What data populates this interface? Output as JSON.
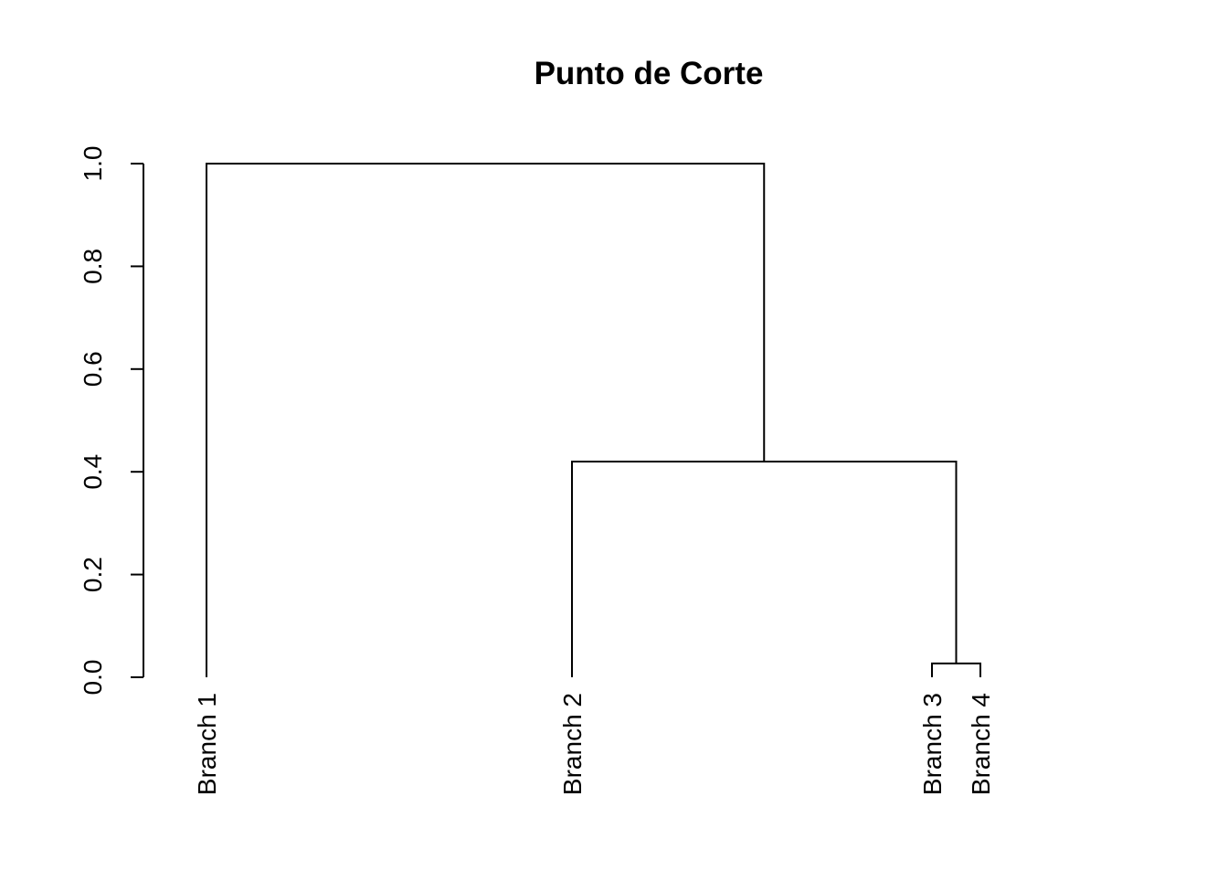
{
  "chart_data": {
    "type": "dendrogram",
    "title": "Punto de Corte",
    "xlabel": "",
    "ylabel": "",
    "ylim": [
      0,
      1
    ],
    "yticks": [
      0,
      0.2,
      0.4,
      0.6,
      0.8,
      1
    ],
    "ytick_labels": [
      "0.0",
      "0.2",
      "0.4",
      "0.6",
      "0.8",
      "1.0"
    ],
    "leaves": [
      "Branch 1",
      "Branch 2",
      "Branch 3",
      "Branch 4"
    ],
    "merges": [
      {
        "left": "Branch 3",
        "right": "Branch 4",
        "height": 0.027
      },
      {
        "left": "Branch 2",
        "right": "Branch 3+Branch 4",
        "height": 0.42
      },
      {
        "left": "Branch 1",
        "right": "Branch 2+Branch 3+Branch 4",
        "height": 1.0
      }
    ],
    "grid": false,
    "line_color": "#000000",
    "background_color": "#ffffff"
  }
}
